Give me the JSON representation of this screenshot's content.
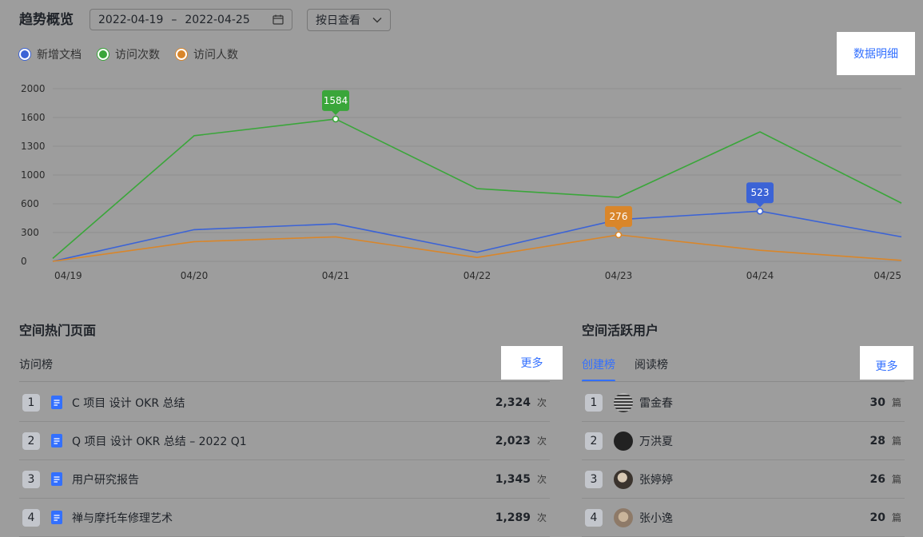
{
  "header": {
    "title": "趋势概览",
    "date_start": "2022-04-19",
    "date_sep": "–",
    "date_end": "2022-04-25",
    "view_mode": "按日查看",
    "detail_link": "数据明细"
  },
  "legend": [
    {
      "label": "新增文档",
      "color": "#3b63d6"
    },
    {
      "label": "访问次数",
      "color": "#3aa63a"
    },
    {
      "label": "访问人数",
      "color": "#d9862a"
    }
  ],
  "chart_data": {
    "type": "line",
    "x": [
      "04/19",
      "04/20",
      "04/21",
      "04/22",
      "04/23",
      "04/24",
      "04/25"
    ],
    "y_ticks": [
      "2000",
      "1600",
      "1300",
      "1000",
      "600",
      "300",
      "0"
    ],
    "series": [
      {
        "name": "新增文档",
        "color": "#3b63d6",
        "values": [
          0,
          330,
          390,
          95,
          435,
          523,
          255
        ]
      },
      {
        "name": "访问次数",
        "color": "#3aa63a",
        "values": [
          30,
          1410,
          1584,
          810,
          690,
          1450,
          610
        ]
      },
      {
        "name": "访问人数",
        "color": "#d9862a",
        "values": [
          0,
          205,
          255,
          40,
          276,
          115,
          10
        ]
      }
    ],
    "tooltips": [
      {
        "series": 1,
        "index": 2,
        "value": "1584"
      },
      {
        "series": 0,
        "index": 5,
        "value": "523"
      },
      {
        "series": 2,
        "index": 4,
        "value": "276"
      }
    ]
  },
  "hot_pages": {
    "title": "空间热门页面",
    "sub_label": "访问榜",
    "more": "更多",
    "items": [
      {
        "rank": "1",
        "name": "C 项目 设计 OKR 总结",
        "count": "2,324",
        "unit": "次"
      },
      {
        "rank": "2",
        "name": "Q 项目 设计 OKR 总结 – 2022 Q1",
        "count": "2,023",
        "unit": "次"
      },
      {
        "rank": "3",
        "name": "用户研究报告",
        "count": "1,345",
        "unit": "次"
      },
      {
        "rank": "4",
        "name": "禅与摩托车修理艺术",
        "count": "1,289",
        "unit": "次"
      }
    ]
  },
  "active_users": {
    "title": "空间活跃用户",
    "tabs": [
      "创建榜",
      "阅读榜"
    ],
    "more": "更多",
    "items": [
      {
        "rank": "1",
        "name": "雷金春",
        "count": "30",
        "unit": "篇"
      },
      {
        "rank": "2",
        "name": "万洪夏",
        "count": "28",
        "unit": "篇"
      },
      {
        "rank": "3",
        "name": "张婷婷",
        "count": "26",
        "unit": "篇"
      },
      {
        "rank": "4",
        "name": "张小逸",
        "count": "20",
        "unit": "篇"
      }
    ]
  }
}
